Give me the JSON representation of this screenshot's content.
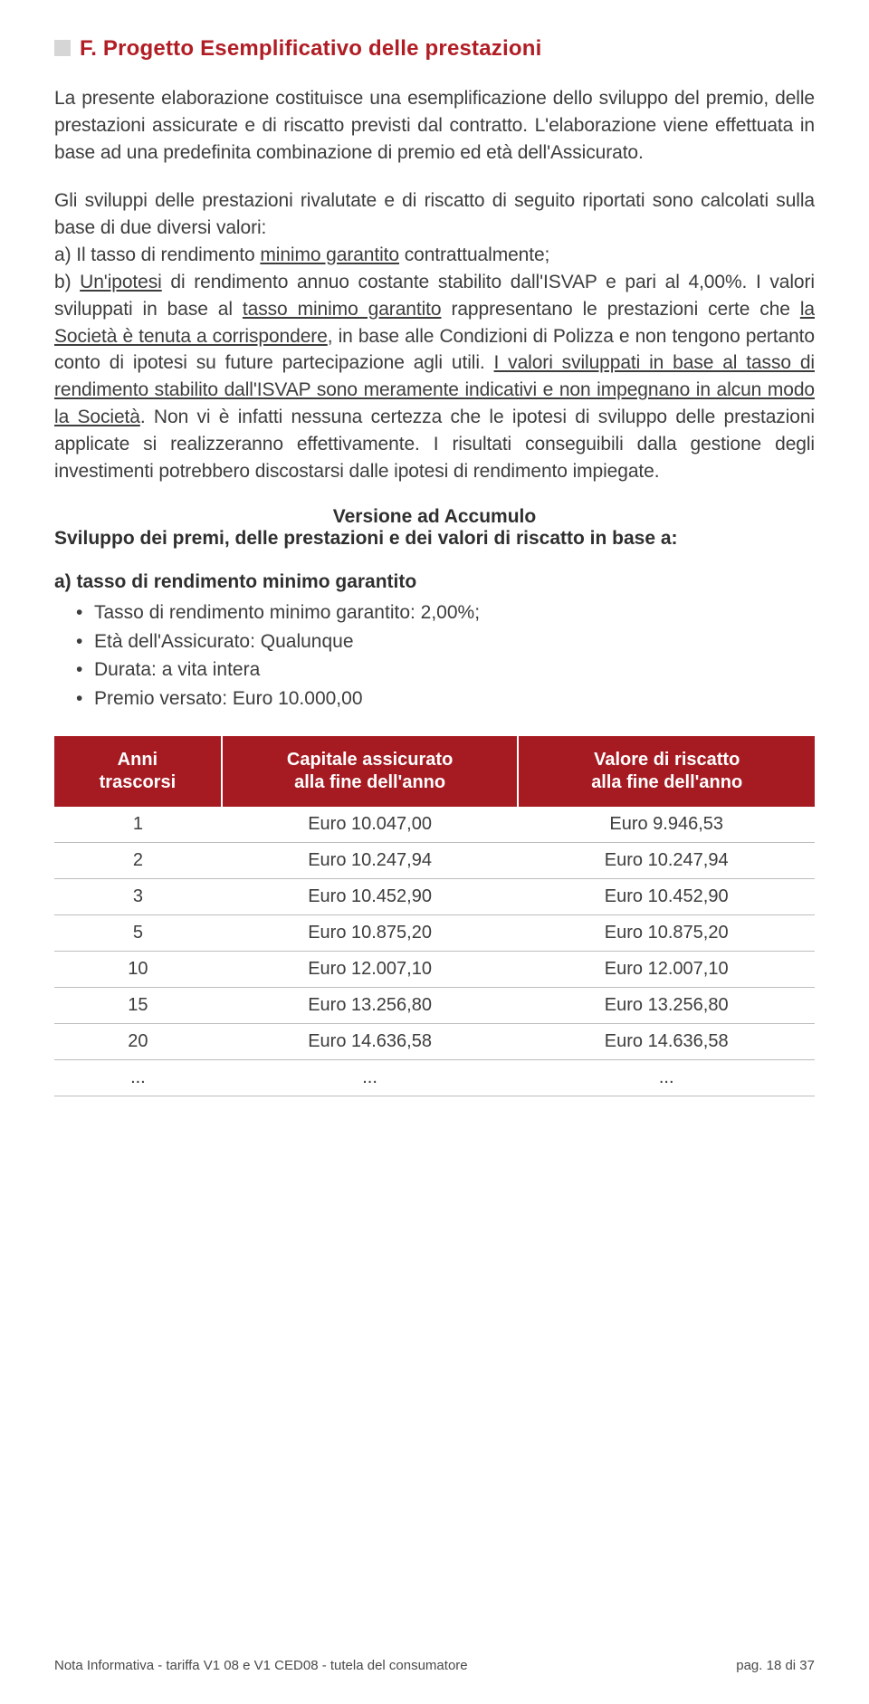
{
  "section": {
    "title": "F. Progetto Esemplificativo delle prestazioni"
  },
  "para1": "La presente elaborazione costituisce una esemplificazione dello sviluppo del premio, delle prestazioni assicurate e di riscatto previsti dal contratto. L'elaborazione viene effettuata in base ad una predefinita combinazione di premio ed età dell'Assicurato.",
  "para2": {
    "lead": "Gli sviluppi delle prestazioni rivalutate e di riscatto di seguito riportati sono calcolati sulla base di due diversi valori:",
    "a_pre": "a) Il tasso di rendimento ",
    "a_u": "minimo garantito",
    "a_post": " contrattualmente;",
    "b_pre": "b) ",
    "b_u": "Un'ipotesi",
    "b_post": " di rendimento annuo costante stabilito dall'ISVAP e pari al 4,00%.",
    "s3_pre": "I valori sviluppati in base al ",
    "s3_u1": "tasso minimo garantito",
    "s3_mid": " rappresentano le prestazioni certe che ",
    "s3_u2": "la Società è tenuta a corrispondere",
    "s3_post": ", in base alle Condizioni di Polizza e non tengono pertanto conto di ipotesi su future partecipazione agli utili.",
    "s4_u": "I valori sviluppati in base al tasso di rendimento stabilito dall'ISVAP sono meramente indicativi e non impegnano in alcun modo la Società",
    "s4_post": ". Non vi è infatti nessuna certezza che le ipotesi di sviluppo delle prestazioni applicate si realizzeranno effettivamente. I risultati conseguibili dalla gestione degli investimenti potrebbero discostarsi dalle ipotesi di rendimento impiegate."
  },
  "version_title": "Versione ad Accumulo",
  "dev_title": "Sviluppo dei premi, delle prestazioni e dei valori di riscatto in base a:",
  "scenario_a": {
    "title": "a) tasso di rendimento minimo garantito",
    "bullets": [
      "Tasso di rendimento minimo garantito: 2,00%;",
      "Età dell'Assicurato: Qualunque",
      "Durata: a vita intera",
      "Premio versato: Euro 10.000,00"
    ]
  },
  "table": {
    "header_bg": "#a61b22",
    "header_fg": "#ffffff",
    "row_border": "#bdbdbd",
    "columns": [
      "Anni\ntrascorsi",
      "Capitale assicurato\nalla fine dell'anno",
      "Valore di riscatto\nalla fine dell'anno"
    ],
    "rows": [
      [
        "1",
        "Euro 10.047,00",
        "Euro 9.946,53"
      ],
      [
        "2",
        "Euro 10.247,94",
        "Euro 10.247,94"
      ],
      [
        "3",
        "Euro 10.452,90",
        "Euro 10.452,90"
      ],
      [
        "5",
        "Euro 10.875,20",
        "Euro 10.875,20"
      ],
      [
        "10",
        "Euro 12.007,10",
        "Euro 12.007,10"
      ],
      [
        "15",
        "Euro 13.256,80",
        "Euro 13.256,80"
      ],
      [
        "20",
        "Euro 14.636,58",
        "Euro 14.636,58"
      ],
      [
        "...",
        "...",
        "..."
      ]
    ]
  },
  "footer": {
    "left": "Nota Informativa - tariffa V1 08 e V1 CED08 - tutela del consumatore",
    "right": "pag. 18 di 37"
  }
}
